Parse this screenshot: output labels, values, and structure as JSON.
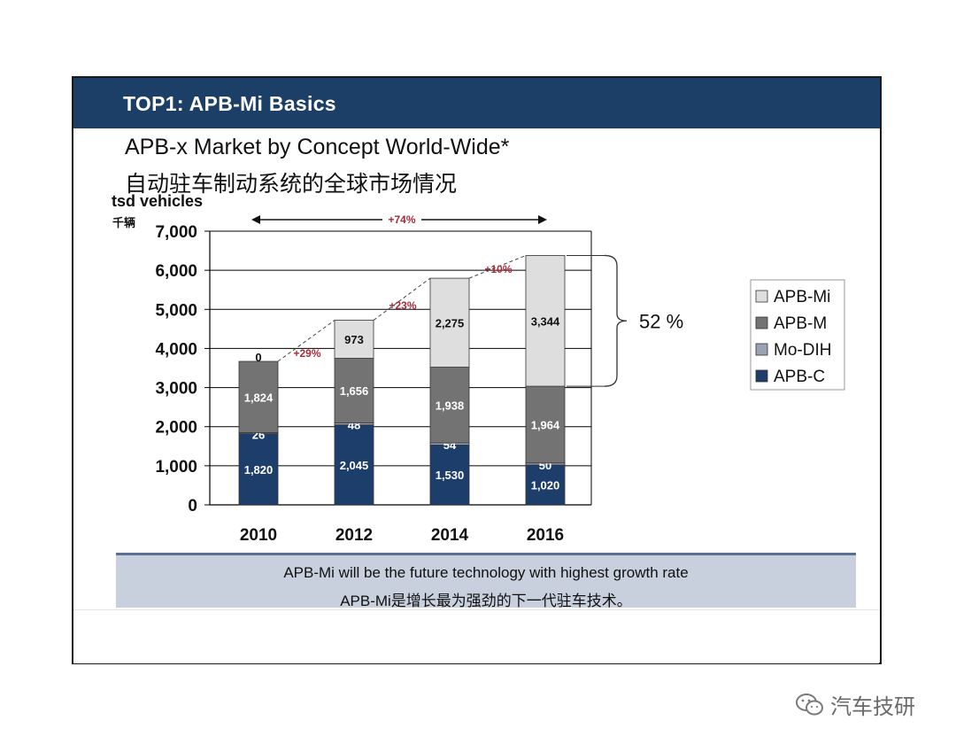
{
  "header": {
    "title": "TOP1: APB-Mi Basics"
  },
  "subtitle": {
    "english": "APB-x Market by Concept World-Wide*",
    "chinese": "自动驻车制动系统的全球市场情况"
  },
  "chart_data": {
    "type": "bar",
    "stacked": true,
    "ylabel": "tsd vehicles",
    "ylabel_cn": "千辆",
    "ylim": [
      0,
      7000
    ],
    "yticks": [
      0,
      1000,
      2000,
      3000,
      4000,
      5000,
      6000,
      7000
    ],
    "ytick_labels": [
      "0",
      "1,000",
      "2,000",
      "3,000",
      "4,000",
      "5,000",
      "6,000",
      "7,000"
    ],
    "grid": true,
    "legend_position": "right",
    "categories": [
      "2010",
      "2012",
      "2014",
      "2016"
    ],
    "series": [
      {
        "name": "APB-C",
        "color": "#1d3d6a",
        "values": [
          1820,
          2045,
          1530,
          1020
        ],
        "labels": [
          "1,820",
          "2,045",
          "1,530",
          "1,020"
        ]
      },
      {
        "name": "Mo-DIH",
        "color": "#9aa3b4",
        "values": [
          26,
          48,
          54,
          50
        ],
        "labels": [
          "26",
          "48",
          "54",
          "50"
        ]
      },
      {
        "name": "APB-M",
        "color": "#737373",
        "values": [
          1824,
          1656,
          1938,
          1964
        ],
        "labels": [
          "1,824",
          "1,656",
          "1,938",
          "1,964"
        ]
      },
      {
        "name": "APB-Mi",
        "color": "#dedede",
        "values": [
          0,
          973,
          2275,
          3344
        ],
        "labels": [
          "0",
          "973",
          "2,275",
          "3,344"
        ]
      }
    ],
    "annotations": {
      "overall_growth": "+74%",
      "growth_labels": [
        "+29%",
        "+23%",
        "+10%"
      ],
      "share_label": "52 %"
    }
  },
  "footer": {
    "line1": "APB-Mi will be the future technology with highest growth rate",
    "line2": "APB-Mi是增长最为强劲的下一代驻车技术。"
  },
  "watermark": {
    "text": "汽车技研",
    "icon": "wechat-icon"
  }
}
